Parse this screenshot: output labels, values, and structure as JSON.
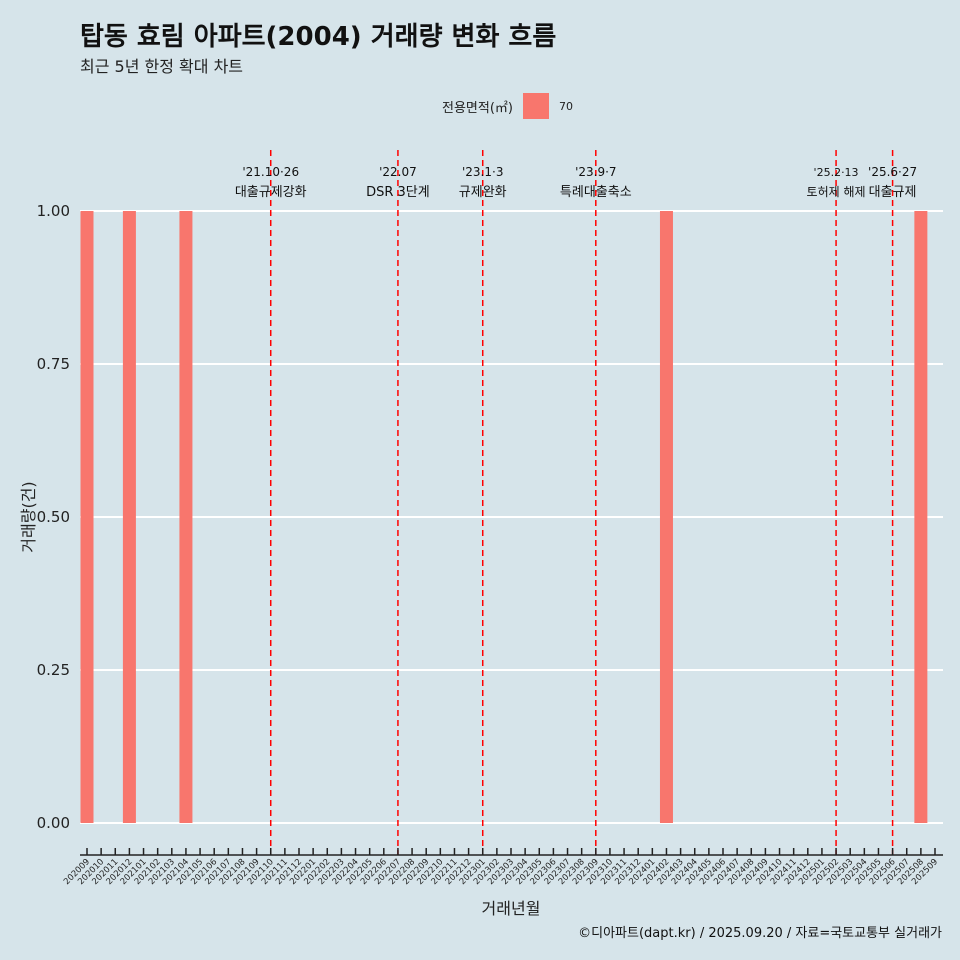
{
  "title": "탑동 효림 아파트(2004) 거래량 변화 흐름",
  "subtitle": "최근 5년 한정 확대 차트",
  "legend": {
    "title": "전용면적(㎡)",
    "items": [
      {
        "label": "70",
        "color": "#f8766d"
      }
    ]
  },
  "caption": "©디아파트(dapt.kr) / 2025.09.20 / 자료=국토교통부 실거래가",
  "chart_data": {
    "type": "bar",
    "xlabel": "거래년월",
    "ylabel": "거래량(건)",
    "ylim": [
      0,
      1
    ],
    "yticks": [
      "0.00",
      "0.25",
      "0.50",
      "0.75",
      "1.00"
    ],
    "ytick_values": [
      0,
      0.25,
      0.5,
      0.75,
      1
    ],
    "categories": [
      "202009",
      "202010",
      "202011",
      "202012",
      "202101",
      "202102",
      "202103",
      "202104",
      "202105",
      "202106",
      "202107",
      "202108",
      "202109",
      "202110",
      "202111",
      "202112",
      "202201",
      "202202",
      "202203",
      "202204",
      "202205",
      "202206",
      "202207",
      "202208",
      "202209",
      "202210",
      "202211",
      "202212",
      "202301",
      "202302",
      "202303",
      "202304",
      "202305",
      "202306",
      "202307",
      "202308",
      "202309",
      "202310",
      "202311",
      "202312",
      "202401",
      "202402",
      "202403",
      "202404",
      "202405",
      "202406",
      "202407",
      "202408",
      "202409",
      "202410",
      "202411",
      "202412",
      "202501",
      "202502",
      "202503",
      "202504",
      "202505",
      "202506",
      "202507",
      "202508",
      "202509"
    ],
    "series": [
      {
        "name": "70",
        "color": "#f8766d",
        "points": [
          [
            "202009",
            1
          ],
          [
            "202012",
            1
          ],
          [
            "202104",
            1
          ],
          [
            "202402",
            1
          ],
          [
            "202508",
            1
          ]
        ]
      }
    ],
    "annotations": [
      {
        "x": "202110",
        "date": "'21.10·26",
        "label": "대출규제강화"
      },
      {
        "x": "202207",
        "date": "'22.07",
        "label": "DSR 3단계"
      },
      {
        "x": "202301",
        "date": "'23.1·3",
        "label": "규제완화"
      },
      {
        "x": "202309",
        "date": "'23.9·7",
        "label": "특례대출축소"
      },
      {
        "x": "202502",
        "date": "'25.2·13",
        "label": "토허제 해제"
      },
      {
        "x": "202506",
        "date": "'25.6·27",
        "label": "대출규제"
      }
    ]
  }
}
